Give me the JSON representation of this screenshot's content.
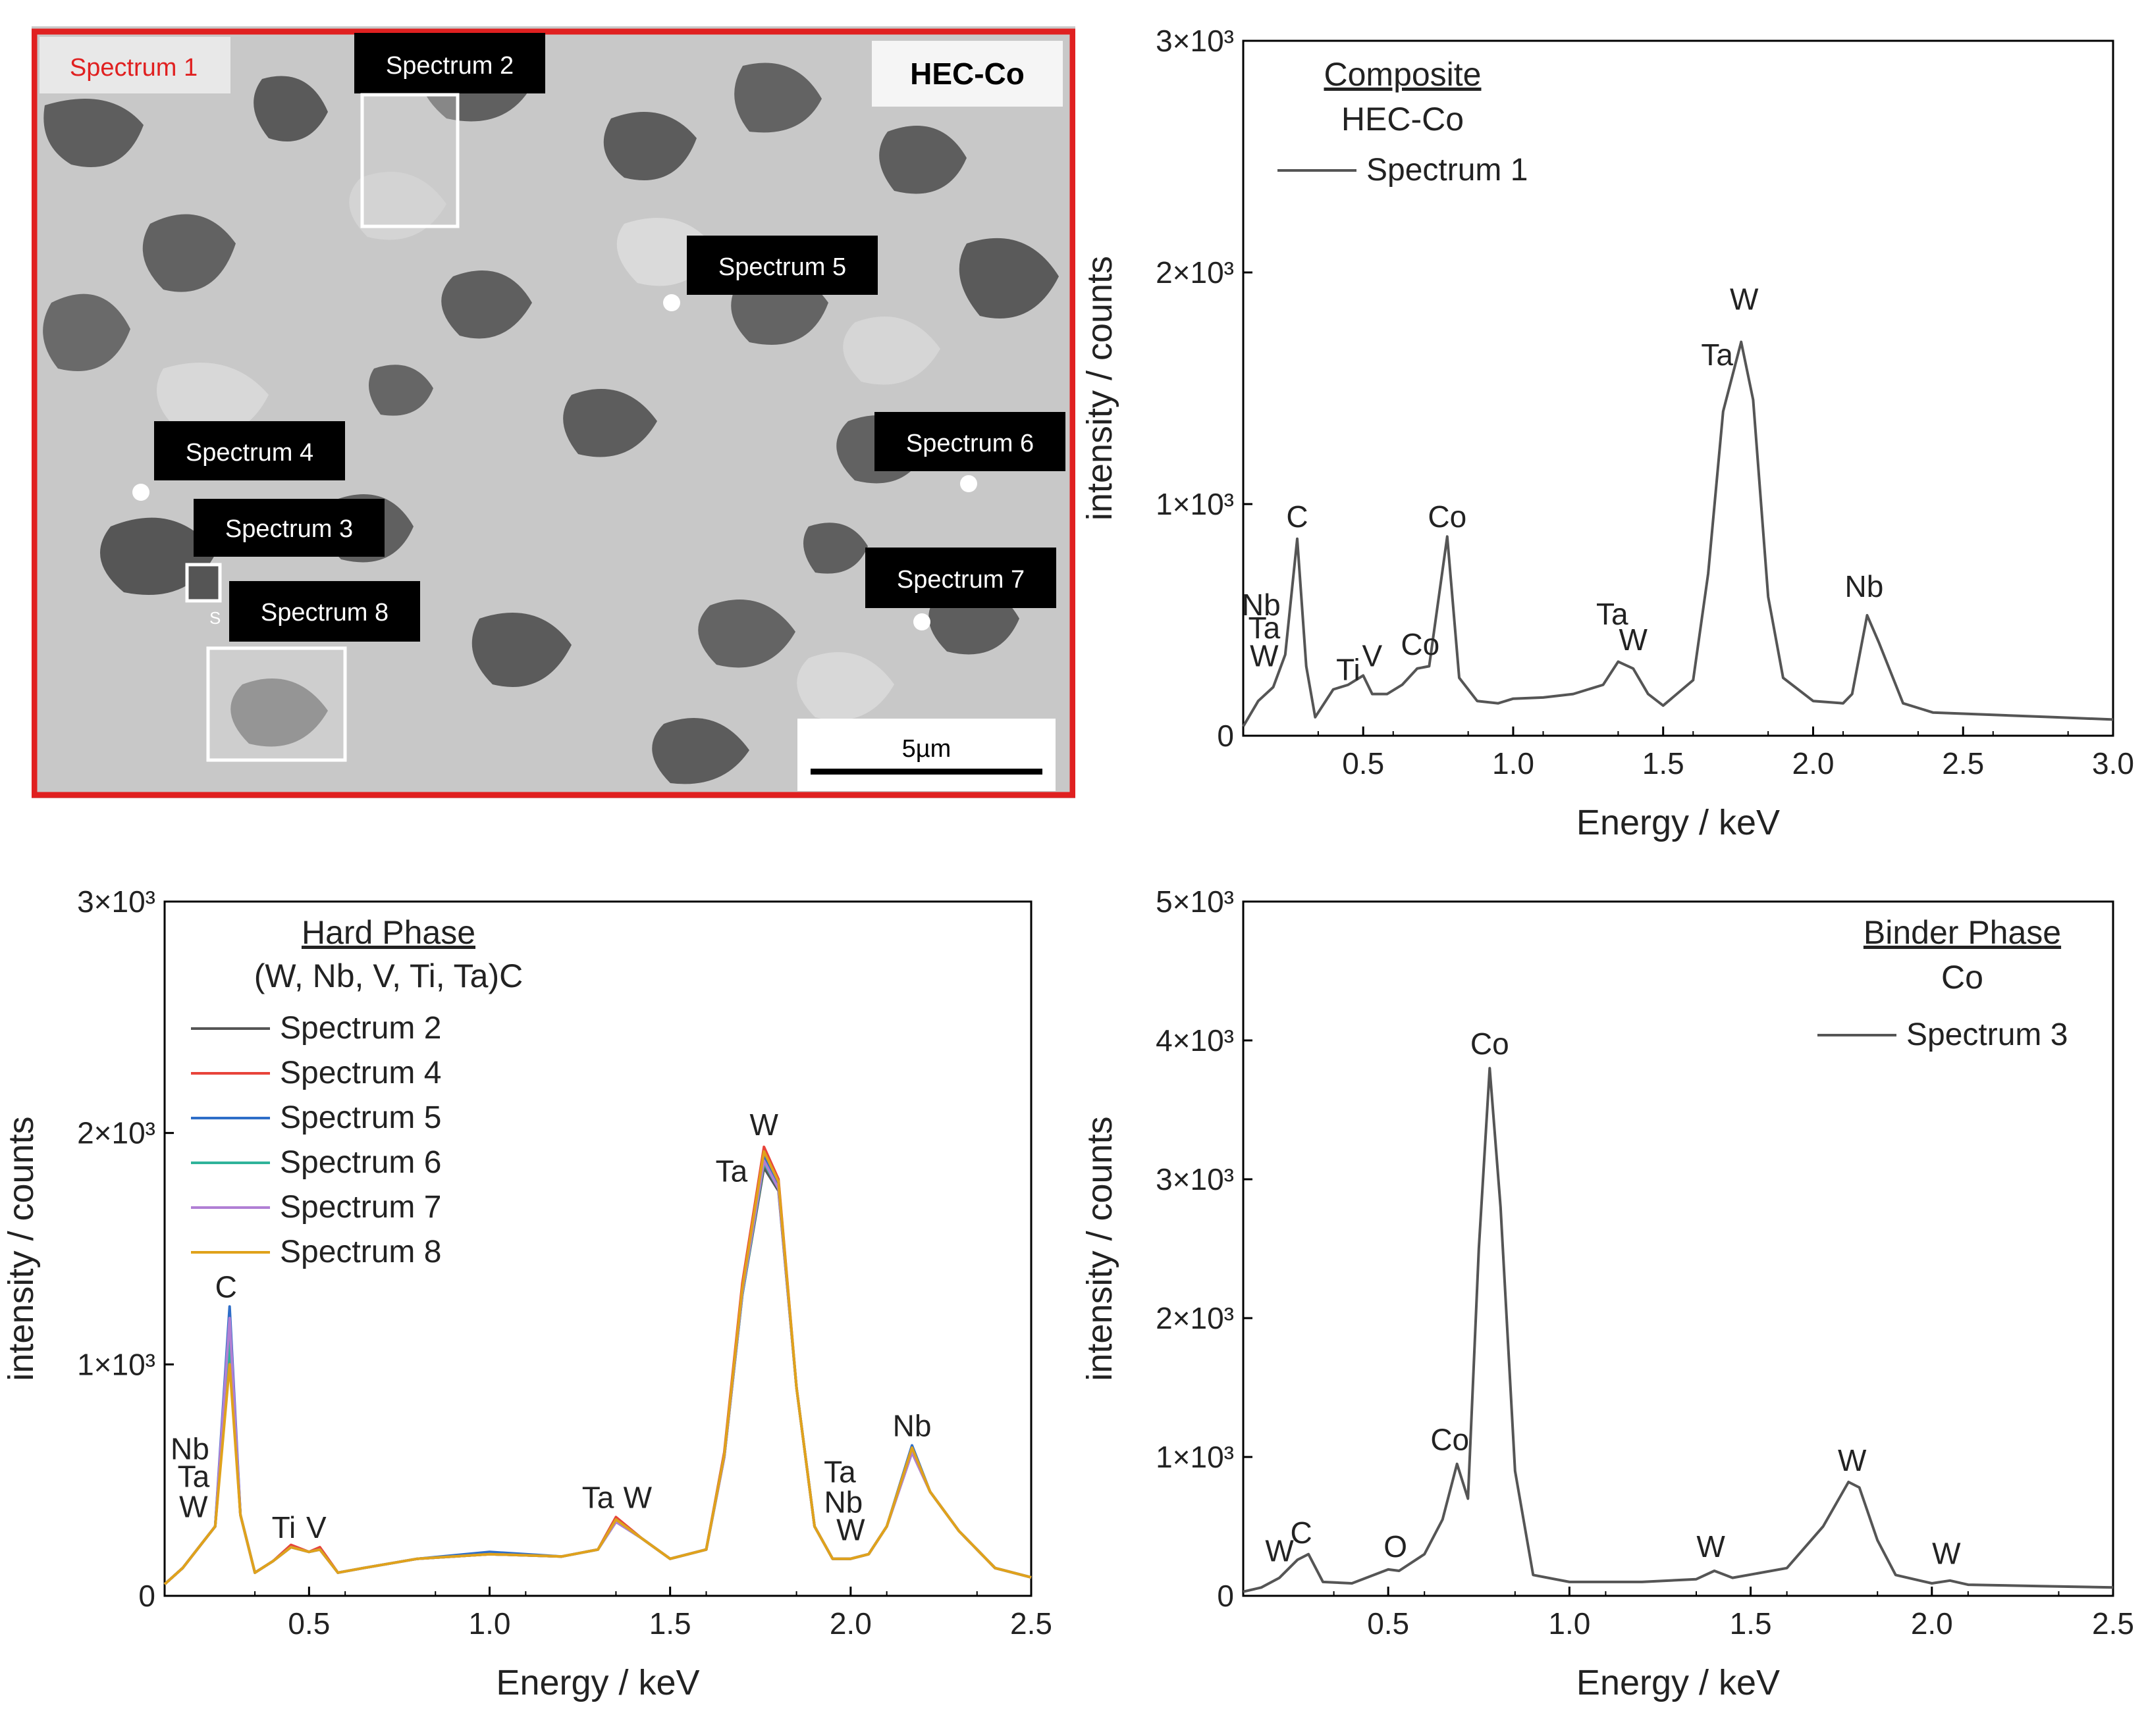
{
  "sem_image": {
    "title": "HEC-Co",
    "scale_bar": "5µm",
    "labels": [
      {
        "name": "spectrum-1-label",
        "text": "Spectrum 1"
      },
      {
        "name": "spectrum-2-label",
        "text": "Spectrum 2"
      },
      {
        "name": "spectrum-3-label",
        "text": "Spectrum 3"
      },
      {
        "name": "spectrum-4-label",
        "text": "Spectrum 4"
      },
      {
        "name": "spectrum-5-label",
        "text": "Spectrum 5"
      },
      {
        "name": "spectrum-6-label",
        "text": "Spectrum 6"
      },
      {
        "name": "spectrum-7-label",
        "text": "Spectrum 7"
      },
      {
        "name": "spectrum-8-label",
        "text": "Spectrum 8"
      }
    ],
    "small_marker": "S",
    "colors": {
      "frame": "#e02020",
      "label_bg": "#000000",
      "grain_light": "#c8c8c8",
      "grain_dark": "#5a5a5a"
    }
  },
  "chart_data": [
    {
      "id": "composite",
      "type": "line",
      "title": "Composite",
      "subtitle": "HEC-Co",
      "xlabel": "Energy / keV",
      "ylabel": "intensity / counts",
      "xlim": [
        0.1,
        3.0
      ],
      "ylim": [
        0,
        3000
      ],
      "xticks": [
        0.5,
        1.0,
        1.5,
        2.0,
        2.5,
        3.0
      ],
      "xtick_labels": [
        "0.5",
        "1.0",
        "1.5",
        "2.0",
        "2.5",
        "3.0"
      ],
      "yticks": [
        0,
        1000,
        2000,
        3000
      ],
      "ytick_labels": [
        "0",
        "1×10³",
        "2×10³",
        "3×10³"
      ],
      "legend": "top-left",
      "grid": false,
      "series": [
        {
          "name": "Spectrum 1",
          "color": "#555555",
          "x": [
            0.1,
            0.15,
            0.2,
            0.24,
            0.28,
            0.31,
            0.34,
            0.4,
            0.45,
            0.5,
            0.53,
            0.58,
            0.63,
            0.68,
            0.72,
            0.78,
            0.82,
            0.88,
            0.95,
            1.0,
            1.1,
            1.2,
            1.3,
            1.35,
            1.4,
            1.45,
            1.5,
            1.6,
            1.65,
            1.7,
            1.76,
            1.8,
            1.85,
            1.9,
            2.0,
            2.1,
            2.13,
            2.18,
            2.22,
            2.26,
            2.3,
            2.4,
            2.6,
            2.8,
            3.0
          ],
          "y": [
            40,
            150,
            210,
            350,
            850,
            300,
            80,
            200,
            220,
            260,
            180,
            180,
            220,
            290,
            300,
            860,
            250,
            150,
            140,
            160,
            165,
            180,
            220,
            320,
            290,
            180,
            130,
            240,
            700,
            1400,
            1700,
            1450,
            600,
            250,
            150,
            140,
            180,
            520,
            400,
            270,
            140,
            100,
            90,
            80,
            70
          ]
        }
      ],
      "annotations": [
        {
          "text": "C",
          "x": 0.28,
          "y": 900
        },
        {
          "text": "Co",
          "x": 0.78,
          "y": 900
        },
        {
          "text": "Nb",
          "x": 0.16,
          "y": 520
        },
        {
          "text": "Ta",
          "x": 0.17,
          "y": 420
        },
        {
          "text": "W",
          "x": 0.17,
          "y": 300
        },
        {
          "text": "Ti",
          "x": 0.45,
          "y": 240
        },
        {
          "text": "V",
          "x": 0.53,
          "y": 300
        },
        {
          "text": "Co",
          "x": 0.69,
          "y": 350
        },
        {
          "text": "Ta",
          "x": 1.33,
          "y": 480
        },
        {
          "text": "W",
          "x": 1.4,
          "y": 370
        },
        {
          "text": "W",
          "x": 1.77,
          "y": 1840
        },
        {
          "text": "Ta",
          "x": 1.68,
          "y": 1600
        },
        {
          "text": "Nb",
          "x": 2.17,
          "y": 600
        }
      ]
    },
    {
      "id": "hard",
      "type": "line",
      "title": "Hard Phase",
      "subtitle": "(W, Nb, V, Ti, Ta)C",
      "xlabel": "Energy / keV",
      "ylabel": "intensity / counts",
      "xlim": [
        0.1,
        2.5
      ],
      "ylim": [
        0,
        3000
      ],
      "xticks": [
        0.5,
        1.0,
        1.5,
        2.0,
        2.5
      ],
      "xtick_labels": [
        "0.5",
        "1.0",
        "1.5",
        "2.0",
        "2.5"
      ],
      "yticks": [
        0,
        1000,
        2000,
        3000
      ],
      "ytick_labels": [
        "0",
        "1×10³",
        "2×10³",
        "3×10³"
      ],
      "legend": "top-left",
      "grid": false,
      "series": [
        {
          "name": "Spectrum 2",
          "color": "#555555",
          "x": [
            0.1,
            0.15,
            0.2,
            0.24,
            0.28,
            0.31,
            0.35,
            0.4,
            0.45,
            0.5,
            0.53,
            0.58,
            0.65,
            0.8,
            1.0,
            1.2,
            1.3,
            1.35,
            1.42,
            1.5,
            1.6,
            1.65,
            1.7,
            1.76,
            1.8,
            1.85,
            1.9,
            1.95,
            2.0,
            2.05,
            2.1,
            2.17,
            2.22,
            2.3,
            2.4,
            2.5
          ],
          "y": [
            50,
            120,
            220,
            300,
            1150,
            350,
            100,
            150,
            210,
            190,
            200,
            100,
            120,
            160,
            180,
            170,
            200,
            320,
            250,
            160,
            200,
            600,
            1300,
            1850,
            1750,
            900,
            300,
            160,
            160,
            180,
            300,
            620,
            450,
            280,
            120,
            80
          ]
        },
        {
          "name": "Spectrum 4",
          "color": "#e8443a",
          "x": [
            0.1,
            0.15,
            0.2,
            0.24,
            0.28,
            0.31,
            0.35,
            0.4,
            0.45,
            0.5,
            0.53,
            0.58,
            0.65,
            0.8,
            1.0,
            1.2,
            1.3,
            1.35,
            1.42,
            1.5,
            1.6,
            1.65,
            1.7,
            1.76,
            1.8,
            1.85,
            1.9,
            1.95,
            2.0,
            2.05,
            2.1,
            2.17,
            2.22,
            2.3,
            2.4,
            2.5
          ],
          "y": [
            50,
            120,
            220,
            300,
            1050,
            350,
            100,
            150,
            220,
            190,
            210,
            100,
            120,
            160,
            180,
            170,
            200,
            340,
            250,
            160,
            200,
            620,
            1350,
            1940,
            1800,
            900,
            300,
            160,
            160,
            180,
            300,
            640,
            450,
            280,
            120,
            80
          ]
        },
        {
          "name": "Spectrum 5",
          "color": "#2e6ec8",
          "x": [
            0.1,
            0.15,
            0.2,
            0.24,
            0.28,
            0.31,
            0.35,
            0.4,
            0.45,
            0.5,
            0.53,
            0.58,
            0.65,
            0.8,
            1.0,
            1.2,
            1.3,
            1.35,
            1.42,
            1.5,
            1.6,
            1.65,
            1.7,
            1.76,
            1.8,
            1.85,
            1.9,
            1.95,
            2.0,
            2.05,
            2.1,
            2.17,
            2.22,
            2.3,
            2.4,
            2.5
          ],
          "y": [
            50,
            120,
            220,
            300,
            1250,
            350,
            100,
            150,
            210,
            190,
            200,
            100,
            120,
            160,
            190,
            170,
            200,
            330,
            250,
            160,
            200,
            610,
            1320,
            1900,
            1770,
            900,
            300,
            160,
            160,
            180,
            300,
            650,
            450,
            280,
            120,
            80
          ]
        },
        {
          "name": "Spectrum 6",
          "color": "#2fb39a",
          "x": [
            0.1,
            0.15,
            0.2,
            0.24,
            0.28,
            0.31,
            0.35,
            0.4,
            0.45,
            0.5,
            0.53,
            0.58,
            0.65,
            0.8,
            1.0,
            1.2,
            1.3,
            1.35,
            1.42,
            1.5,
            1.6,
            1.65,
            1.7,
            1.76,
            1.8,
            1.85,
            1.9,
            1.95,
            2.0,
            2.05,
            2.1,
            2.17,
            2.22,
            2.3,
            2.4,
            2.5
          ],
          "y": [
            50,
            120,
            220,
            300,
            1100,
            350,
            100,
            150,
            210,
            190,
            200,
            100,
            120,
            160,
            180,
            170,
            200,
            320,
            250,
            160,
            200,
            600,
            1300,
            1870,
            1760,
            900,
            300,
            160,
            160,
            180,
            300,
            630,
            450,
            280,
            120,
            80
          ]
        },
        {
          "name": "Spectrum 7",
          "color": "#b07fd4",
          "x": [
            0.1,
            0.15,
            0.2,
            0.24,
            0.28,
            0.31,
            0.35,
            0.4,
            0.45,
            0.5,
            0.53,
            0.58,
            0.65,
            0.8,
            1.0,
            1.2,
            1.3,
            1.35,
            1.42,
            1.5,
            1.6,
            1.65,
            1.7,
            1.76,
            1.8,
            1.85,
            1.9,
            1.95,
            2.0,
            2.05,
            2.1,
            2.17,
            2.22,
            2.3,
            2.4,
            2.5
          ],
          "y": [
            50,
            120,
            220,
            300,
            1200,
            350,
            100,
            150,
            210,
            190,
            200,
            100,
            120,
            160,
            180,
            170,
            200,
            320,
            250,
            160,
            200,
            600,
            1310,
            1880,
            1760,
            900,
            300,
            160,
            160,
            180,
            300,
            620,
            450,
            280,
            120,
            80
          ]
        },
        {
          "name": "Spectrum 8",
          "color": "#e0a21b",
          "x": [
            0.1,
            0.15,
            0.2,
            0.24,
            0.28,
            0.31,
            0.35,
            0.4,
            0.45,
            0.5,
            0.53,
            0.58,
            0.65,
            0.8,
            1.0,
            1.2,
            1.3,
            1.35,
            1.42,
            1.5,
            1.6,
            1.65,
            1.7,
            1.76,
            1.8,
            1.85,
            1.9,
            1.95,
            2.0,
            2.05,
            2.1,
            2.17,
            2.22,
            2.3,
            2.4,
            2.5
          ],
          "y": [
            50,
            120,
            220,
            300,
            1000,
            350,
            100,
            150,
            210,
            190,
            200,
            100,
            120,
            160,
            180,
            170,
            200,
            330,
            250,
            160,
            200,
            610,
            1330,
            1920,
            1790,
            900,
            300,
            160,
            160,
            180,
            300,
            640,
            450,
            280,
            120,
            80
          ]
        }
      ],
      "annotations": [
        {
          "text": "C",
          "x": 0.27,
          "y": 1290
        },
        {
          "text": "Nb",
          "x": 0.17,
          "y": 590
        },
        {
          "text": "Ta",
          "x": 0.18,
          "y": 470
        },
        {
          "text": "W",
          "x": 0.18,
          "y": 340
        },
        {
          "text": "Ti",
          "x": 0.43,
          "y": 250
        },
        {
          "text": "V",
          "x": 0.52,
          "y": 250
        },
        {
          "text": "Ta",
          "x": 1.3,
          "y": 380
        },
        {
          "text": "W",
          "x": 1.41,
          "y": 380
        },
        {
          "text": "W",
          "x": 1.76,
          "y": 1990
        },
        {
          "text": "Ta",
          "x": 1.67,
          "y": 1790
        },
        {
          "text": "Ta",
          "x": 1.97,
          "y": 490
        },
        {
          "text": "Nb",
          "x": 1.98,
          "y": 360
        },
        {
          "text": "W",
          "x": 2.0,
          "y": 240
        },
        {
          "text": "Nb",
          "x": 2.17,
          "y": 690
        }
      ]
    },
    {
      "id": "binder",
      "type": "line",
      "title": "Binder Phase",
      "subtitle": "Co",
      "xlabel": "Energy / keV",
      "ylabel": "intensity / counts",
      "xlim": [
        0.1,
        2.5
      ],
      "ylim": [
        0,
        5000
      ],
      "xticks": [
        0.5,
        1.0,
        1.5,
        2.0,
        2.5
      ],
      "xtick_labels": [
        "0.5",
        "1.0",
        "1.5",
        "2.0",
        "2.5"
      ],
      "yticks": [
        0,
        1000,
        2000,
        3000,
        4000,
        5000
      ],
      "ytick_labels": [
        "0",
        "1×10³",
        "2×10³",
        "3×10³",
        "4×10³",
        "5×10³"
      ],
      "legend": "top-right",
      "grid": false,
      "series": [
        {
          "name": "Spectrum 3",
          "color": "#555555",
          "x": [
            0.1,
            0.15,
            0.2,
            0.25,
            0.28,
            0.32,
            0.4,
            0.5,
            0.53,
            0.6,
            0.65,
            0.69,
            0.72,
            0.75,
            0.78,
            0.81,
            0.85,
            0.9,
            1.0,
            1.2,
            1.35,
            1.4,
            1.45,
            1.6,
            1.7,
            1.77,
            1.8,
            1.85,
            1.9,
            2.0,
            2.05,
            2.1,
            2.3,
            2.5
          ],
          "y": [
            30,
            60,
            130,
            260,
            300,
            100,
            90,
            190,
            180,
            300,
            550,
            950,
            700,
            2500,
            3800,
            2800,
            900,
            150,
            100,
            100,
            120,
            180,
            130,
            200,
            500,
            820,
            780,
            400,
            150,
            90,
            110,
            80,
            70,
            60
          ]
        }
      ],
      "annotations": [
        {
          "text": "Co",
          "x": 0.78,
          "y": 3900
        },
        {
          "text": "Co",
          "x": 0.67,
          "y": 1050
        },
        {
          "text": "W",
          "x": 0.2,
          "y": 250
        },
        {
          "text": "C",
          "x": 0.26,
          "y": 380
        },
        {
          "text": "O",
          "x": 0.52,
          "y": 280
        },
        {
          "text": "W",
          "x": 1.39,
          "y": 280
        },
        {
          "text": "W",
          "x": 1.78,
          "y": 900
        },
        {
          "text": "W",
          "x": 2.04,
          "y": 230
        }
      ]
    }
  ]
}
